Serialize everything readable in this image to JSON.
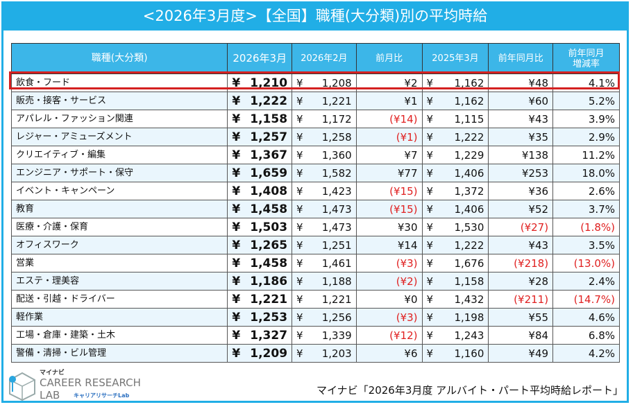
{
  "title": "<2026年3月度>【全国】職種(大分類)別の平均時給",
  "headers": [
    "職種(大分類)",
    "2026年3月",
    "2026年2月",
    "前月比",
    "2025年3月",
    "前年同月比",
    "前年同月\n増減率"
  ],
  "rows": [
    {
      "name": "飲食・フード",
      "mar26": "1,210",
      "feb26": "1,208",
      "mom": "¥2",
      "mom_neg": false,
      "mar25": "1,162",
      "yoy": "¥48",
      "yoy_neg": false,
      "rate": "4.1%",
      "rate_neg": false,
      "highlighted": true
    },
    {
      "name": "販売・接客・サービス",
      "mar26": "1,222",
      "feb26": "1,221",
      "mom": "¥1",
      "mom_neg": false,
      "mar25": "1,162",
      "yoy": "¥60",
      "yoy_neg": false,
      "rate": "5.2%",
      "rate_neg": false
    },
    {
      "name": "アパレル・ファッション関連",
      "mar26": "1,158",
      "feb26": "1,172",
      "mom": "(¥14)",
      "mom_neg": true,
      "mar25": "1,115",
      "yoy": "¥43",
      "yoy_neg": false,
      "rate": "3.9%",
      "rate_neg": false
    },
    {
      "name": "レジャー・アミューズメント",
      "mar26": "1,257",
      "feb26": "1,258",
      "mom": "(¥1)",
      "mom_neg": true,
      "mar25": "1,222",
      "yoy": "¥35",
      "yoy_neg": false,
      "rate": "2.9%",
      "rate_neg": false
    },
    {
      "name": "クリエイティブ・編集",
      "mar26": "1,367",
      "feb26": "1,360",
      "mom": "¥7",
      "mom_neg": false,
      "mar25": "1,229",
      "yoy": "¥138",
      "yoy_neg": false,
      "rate": "11.2%",
      "rate_neg": false
    },
    {
      "name": "エンジニア・サポート・保守",
      "mar26": "1,659",
      "feb26": "1,582",
      "mom": "¥77",
      "mom_neg": false,
      "mar25": "1,406",
      "yoy": "¥253",
      "yoy_neg": false,
      "rate": "18.0%",
      "rate_neg": false
    },
    {
      "name": "イベント・キャンペーン",
      "mar26": "1,408",
      "feb26": "1,423",
      "mom": "(¥15)",
      "mom_neg": true,
      "mar25": "1,372",
      "yoy": "¥36",
      "yoy_neg": false,
      "rate": "2.6%",
      "rate_neg": false
    },
    {
      "name": "教育",
      "mar26": "1,458",
      "feb26": "1,473",
      "mom": "(¥15)",
      "mom_neg": true,
      "mar25": "1,406",
      "yoy": "¥52",
      "yoy_neg": false,
      "rate": "3.7%",
      "rate_neg": false
    },
    {
      "name": "医療・介護・保育",
      "mar26": "1,503",
      "feb26": "1,473",
      "mom": "¥30",
      "mom_neg": false,
      "mar25": "1,530",
      "yoy": "(¥27)",
      "yoy_neg": true,
      "rate": "(1.8%)",
      "rate_neg": true
    },
    {
      "name": "オフィスワーク",
      "mar26": "1,265",
      "feb26": "1,251",
      "mom": "¥14",
      "mom_neg": false,
      "mar25": "1,222",
      "yoy": "¥43",
      "yoy_neg": false,
      "rate": "3.5%",
      "rate_neg": false
    },
    {
      "name": "営業",
      "mar26": "1,458",
      "feb26": "1,461",
      "mom": "(¥3)",
      "mom_neg": true,
      "mar25": "1,676",
      "yoy": "(¥218)",
      "yoy_neg": true,
      "rate": "(13.0%)",
      "rate_neg": true
    },
    {
      "name": "エステ・理美容",
      "mar26": "1,186",
      "feb26": "1,188",
      "mom": "(¥2)",
      "mom_neg": true,
      "mar25": "1,158",
      "yoy": "¥28",
      "yoy_neg": false,
      "rate": "2.4%",
      "rate_neg": false
    },
    {
      "name": "配送・引越・ドライバー",
      "mar26": "1,221",
      "feb26": "1,221",
      "mom": "¥0",
      "mom_neg": false,
      "mar25": "1,432",
      "yoy": "(¥211)",
      "yoy_neg": true,
      "rate": "(14.7%)",
      "rate_neg": true
    },
    {
      "name": "軽作業",
      "mar26": "1,253",
      "feb26": "1,256",
      "mom": "(¥3)",
      "mom_neg": true,
      "mar25": "1,198",
      "yoy": "¥55",
      "yoy_neg": false,
      "rate": "4.6%",
      "rate_neg": false
    },
    {
      "name": "工場・倉庫・建築・土木",
      "mar26": "1,327",
      "feb26": "1,339",
      "mom": "(¥12)",
      "mom_neg": true,
      "mar25": "1,243",
      "yoy": "¥84",
      "yoy_neg": false,
      "rate": "6.8%",
      "rate_neg": false
    },
    {
      "name": "警備・清掃・ビル管理",
      "mar26": "1,209",
      "feb26": "1,203",
      "mom": "¥6",
      "mom_neg": false,
      "mar25": "1,160",
      "yoy": "¥49",
      "yoy_neg": false,
      "rate": "4.2%",
      "rate_neg": false
    }
  ],
  "currency_symbol": "¥",
  "logo": {
    "small": "マイナビ",
    "line1": "CAREER RESEARCH",
    "line2": "LAB",
    "line3": "キャリアリサーチLab"
  },
  "source": "マイナビ「2026年3月度 アルバイト・パート平均時給レポート」",
  "colors": {
    "accent": "#21aee6",
    "header": "#3cb6e8",
    "negative": "#e02020",
    "highlight": "#d42020",
    "alt_row": "#eaf6fd"
  }
}
